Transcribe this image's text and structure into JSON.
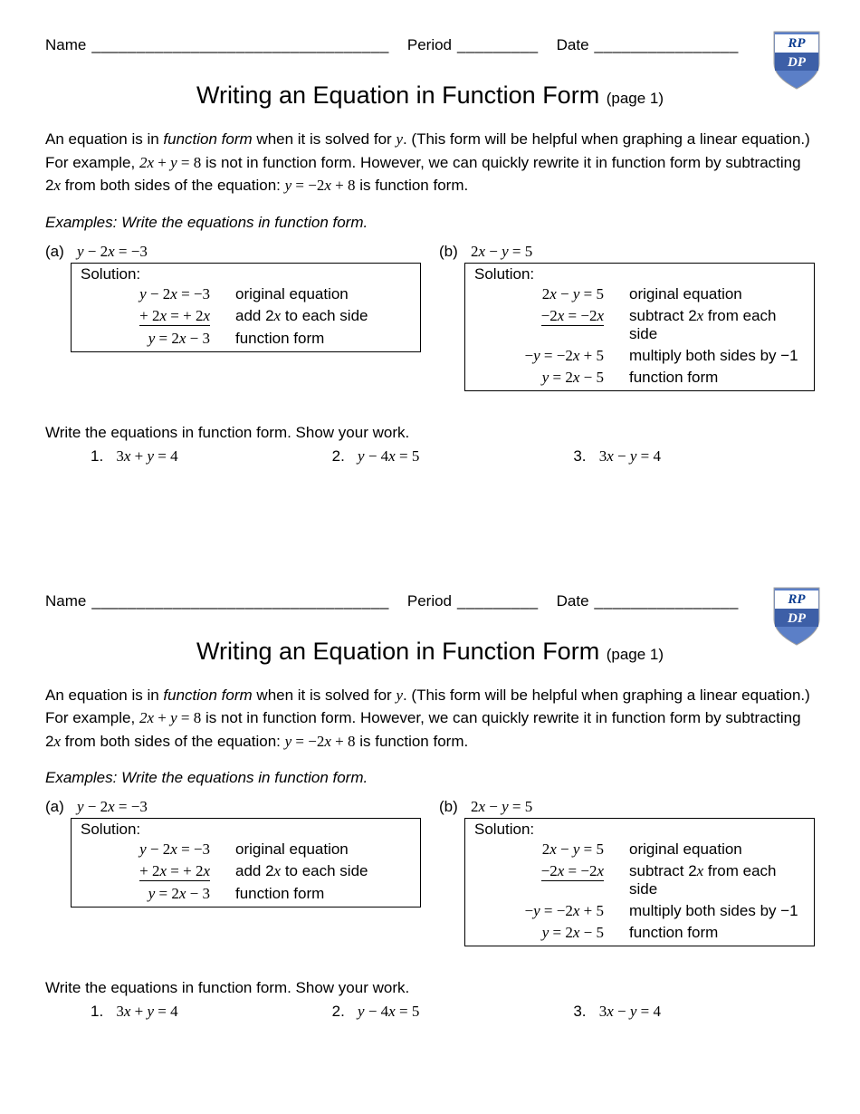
{
  "header": {
    "name_label": "Name",
    "name_blank": "_________________________________",
    "period_label": "Period",
    "period_blank": "_________",
    "date_label": "Date",
    "date_blank": "________________"
  },
  "logo": {
    "text_top": "RP",
    "text_bottom": "DP",
    "shield_fill": "#5b7fc7",
    "banner_fill": "#ffffff",
    "banner_text_color": "#0b3d91",
    "outline_color": "#a0a0a0"
  },
  "title": {
    "main": "Writing an Equation in Function Form",
    "sub": "(page 1)"
  },
  "intro": {
    "part1": "An equation is in ",
    "term": "function form",
    "part2": " when it is solved for ",
    "var1": "y",
    "part3": ".  (This form will be helpful when graphing a linear equation.)  For example,  ",
    "eq1": "2x + y = 8",
    "part4": "  is not in function form.  However, we can quickly rewrite it in function form by subtracting 2",
    "var2": "x",
    "part5": " from both sides of the equation:  ",
    "eq2": "y = −2x + 8",
    "part6": "  is function form."
  },
  "examples_heading": "Examples:   Write the equations in function form.",
  "example_a": {
    "label": "(a)",
    "equation": "y − 2x = −3",
    "solution_label": "Solution:",
    "steps": [
      {
        "eq": "y − 2x = −3",
        "reason": "original equation"
      },
      {
        "eq": "+ 2x = + 2x",
        "reason": "add 2x to each side",
        "underline": true
      },
      {
        "eq": "y = 2x − 3",
        "reason": "function form"
      }
    ]
  },
  "example_b": {
    "label": "(b)",
    "equation": "2x − y = 5",
    "solution_label": "Solution:",
    "steps": [
      {
        "eq": "2x − y = 5",
        "reason": "original equation"
      },
      {
        "eq": "−2x = −2x",
        "reason": "subtract 2x from each side",
        "underline": true
      },
      {
        "eq": "−y = −2x + 5",
        "reason": "multiply both sides by −1"
      },
      {
        "eq": "y = 2x − 5",
        "reason": "function form"
      }
    ]
  },
  "practice_heading": "Write the equations in function form.   Show your work.",
  "practice": [
    {
      "num": "1.",
      "eq": "3x + y = 4"
    },
    {
      "num": "2.",
      "eq": "y − 4x = 5"
    },
    {
      "num": "3.",
      "eq": "3x − y = 4"
    }
  ]
}
